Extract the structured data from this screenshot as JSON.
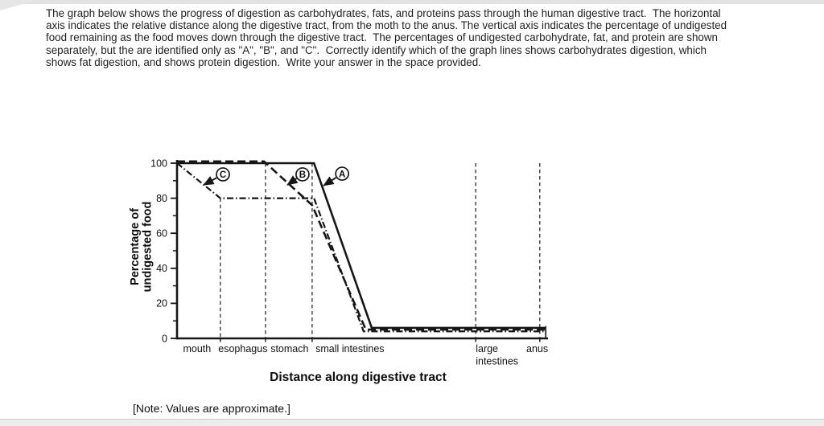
{
  "page": {
    "question_lines": [
      "The graph below shows the progress of digestion as carbohydrates, fats, and proteins pass through the human digestive tract.  The horizontal",
      "axis indicates the relative distance along the digestive tract, from the moth to the anus. The vertical axis indicates the percentage of undigested",
      "food remaining as the food moves down through the digestive tract.  The percentages of undigested carbohydrate, fat, and protein are shown",
      "separately, but the are identified only as \"A\", \"B\", and \"C\".  Correctly identify which of the graph lines shows carbohydrates digestion, which",
      "shows fat digestion, and shows protein digestion.  Write your answer in the space provided."
    ],
    "note": "[Note: Values are approximate.]"
  },
  "chart_data": {
    "type": "line",
    "title": "",
    "xlabel": "Distance along digestive tract",
    "ylabel": "Percentage of undigested food",
    "ylabel_lines": [
      "Percentage of",
      "undigested food"
    ],
    "ylim": [
      0,
      100
    ],
    "xlim": [
      0,
      100
    ],
    "x_units": "relative distance along tract (0 = mouth, 100 = anus)",
    "y_major_ticks": [
      0,
      20,
      40,
      60,
      80,
      100
    ],
    "y_minor_ticks": [
      10,
      30,
      50,
      70,
      90
    ],
    "grid": "vertical dashed region boundaries",
    "legend_position": "none (circled letters point to lines)",
    "region_labels": [
      {
        "text": "mouth",
        "x": 5.4,
        "anchor": "middle"
      },
      {
        "text": "esophagus",
        "x": 17.8,
        "anchor": "middle"
      },
      {
        "text": "stomach",
        "x": 30.4,
        "anchor": "middle"
      },
      {
        "text": "small intestines",
        "x": 46.7,
        "anchor": "middle"
      },
      {
        "text": "large",
        "x": 80.7,
        "anchor": "start",
        "line2": "intestines"
      },
      {
        "text": "anus",
        "x": 97.3,
        "anchor": "middle"
      }
    ],
    "gridlines": [
      {
        "x": 11.7,
        "y_top": 80
      },
      {
        "x": 23.9,
        "y_top": 100
      },
      {
        "x": 36.5,
        "y_top": 100
      },
      {
        "x": 80.7,
        "y_top": 100
      },
      {
        "x": 98.0,
        "y_top": 100
      }
    ],
    "series": [
      {
        "name": "C",
        "style": "dashdot",
        "width": 2.2,
        "points": [
          [
            0,
            100
          ],
          [
            11.7,
            80
          ],
          [
            37,
            80
          ],
          [
            50.4,
            4
          ],
          [
            99.6,
            4
          ]
        ]
      },
      {
        "name": "B",
        "style": "dashed",
        "width": 2.6,
        "overlap_lift": true,
        "points": [
          [
            0,
            100
          ],
          [
            23.5,
            100
          ],
          [
            36.5,
            76
          ],
          [
            51,
            5
          ],
          [
            99.6,
            5
          ]
        ]
      },
      {
        "name": "A",
        "style": "solid",
        "width": 2.6,
        "points": [
          [
            0,
            100
          ],
          [
            37,
            100
          ],
          [
            52.6,
            6
          ],
          [
            99.6,
            6
          ]
        ]
      }
    ],
    "annotations": [
      {
        "label": "C",
        "cx": 12.4,
        "cy": 93.6,
        "tx": 7.2,
        "ty": 87.6
      },
      {
        "label": "B",
        "cx": 33.9,
        "cy": 93.6,
        "tx": 29.8,
        "ty": 87.6
      },
      {
        "label": "A",
        "cx": 44.6,
        "cy": 94.0,
        "tx": 39.6,
        "ty": 87.2
      }
    ]
  }
}
